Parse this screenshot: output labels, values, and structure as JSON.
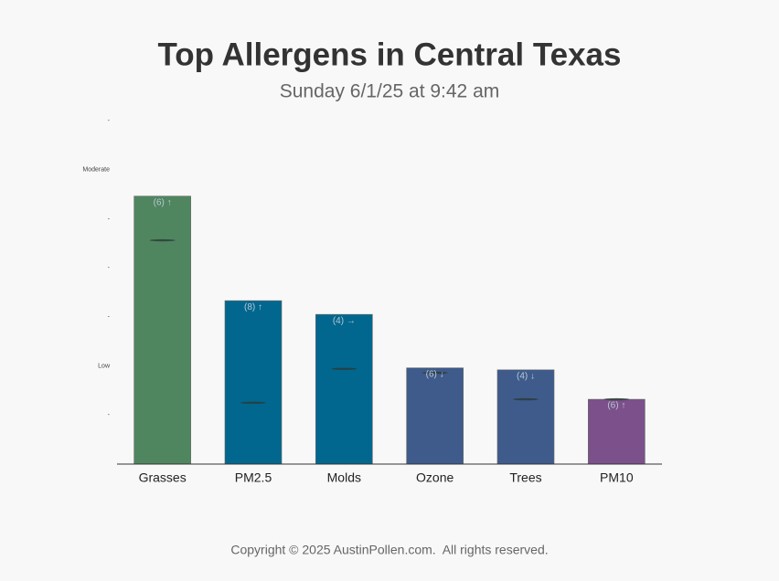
{
  "chart_data": {
    "type": "bar",
    "title": "Top Allergens in Central Texas",
    "subtitle": "Sunday 6/1/25 at 9:42 am",
    "categories": [
      "Grasses",
      "PM2.5",
      "Molds",
      "Ozone",
      "Trees",
      "PM10"
    ],
    "values": [
      5.46,
      3.33,
      3.05,
      1.96,
      1.92,
      1.32
    ],
    "bar_labels": [
      "(6) ↑",
      "(8) ↑",
      "(4) →",
      "(6) ↓",
      "(4) ↓",
      "(6) ↑"
    ],
    "marker_values": [
      4.56,
      1.25,
      1.94,
      1.86,
      1.32,
      1.32
    ],
    "colors": [
      "#4f8660",
      "#02678f",
      "#02678f",
      "#3e5b8b",
      "#3e5b8b",
      "#7c508b"
    ],
    "ylim": [
      0,
      7
    ],
    "yticks": [
      {
        "value": 1,
        "label": "-"
      },
      {
        "value": 2,
        "label": "Low"
      },
      {
        "value": 3,
        "label": "-"
      },
      {
        "value": 4,
        "label": "-"
      },
      {
        "value": 5,
        "label": "-"
      },
      {
        "value": 6,
        "label": "Moderate"
      },
      {
        "value": 7,
        "label": "-"
      }
    ],
    "footer": "Copyright © 2025 AustinPollen.com.  All rights reserved."
  }
}
